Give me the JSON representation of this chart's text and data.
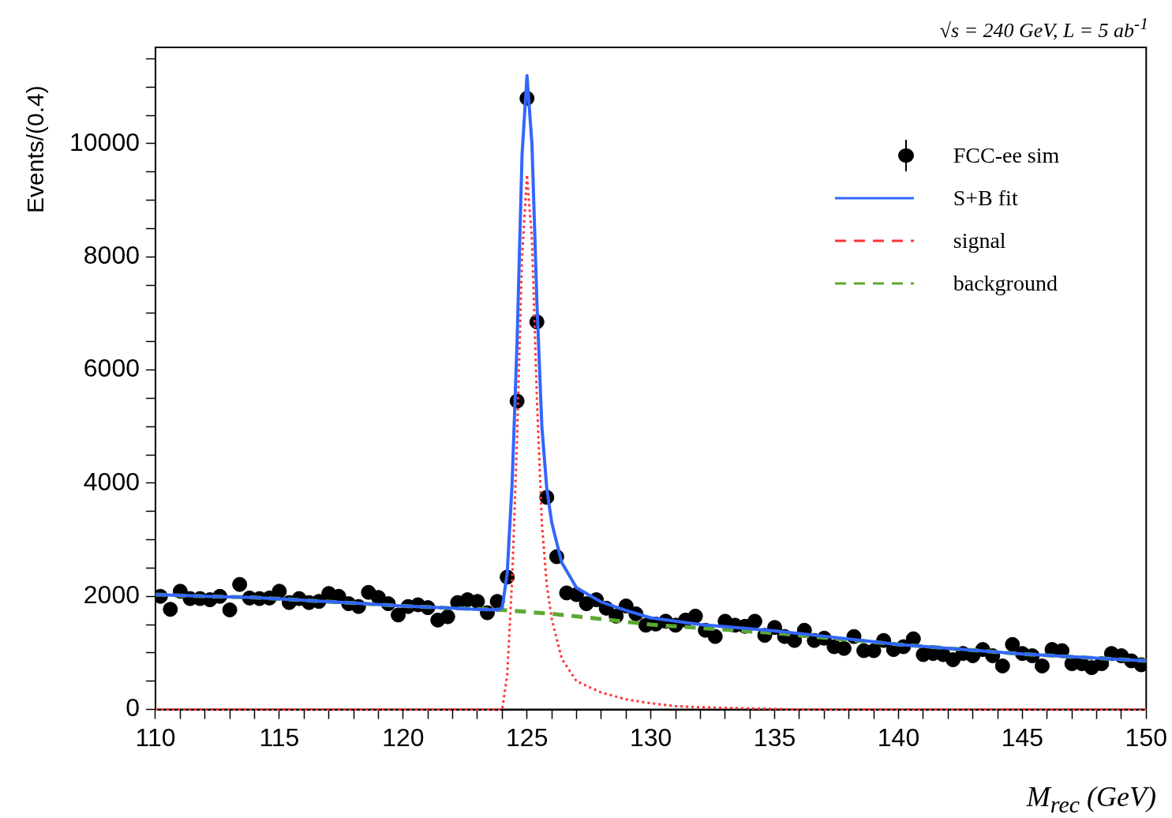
{
  "chart_data": {
    "type": "scatter",
    "title": "√s = 240 GeV, L = 5 ab$^{-1}$",
    "xlabel": "M$_{rec}$ (GeV)",
    "ylabel": "Events/(0.4)",
    "xlim": [
      110,
      150
    ],
    "ylim": [
      0,
      11700
    ],
    "xticks": [
      110,
      {
        "value": 111,
        "label": null
      },
      {
        "value": 112,
        "label": null
      },
      {
        "value": 113,
        "label": null
      },
      {
        "value": 114,
        "label": null
      },
      115,
      {
        "value": 116,
        "label": null
      },
      {
        "value": 117,
        "label": null
      },
      {
        "value": 118,
        "label": null
      },
      {
        "value": 119,
        "label": null
      },
      120,
      {
        "value": 121,
        "label": null
      },
      {
        "value": 122,
        "label": null
      },
      {
        "value": 123,
        "label": null
      },
      {
        "value": 124,
        "label": null
      },
      125,
      {
        "value": 126,
        "label": null
      },
      {
        "value": 127,
        "label": null
      },
      {
        "value": 128,
        "label": null
      },
      {
        "value": 129,
        "label": null
      },
      130,
      {
        "value": 131,
        "label": null
      },
      {
        "value": 132,
        "label": null
      },
      {
        "value": 133,
        "label": null
      },
      {
        "value": 134,
        "label": null
      },
      135,
      {
        "value": 136,
        "label": null
      },
      {
        "value": 137,
        "label": null
      },
      {
        "value": 138,
        "label": null
      },
      {
        "value": 139,
        "label": null
      },
      140,
      {
        "value": 141,
        "label": null
      },
      {
        "value": 142,
        "label": null
      },
      {
        "value": 143,
        "label": null
      },
      {
        "value": 144,
        "label": null
      },
      145,
      {
        "value": 146,
        "label": null
      },
      {
        "value": 147,
        "label": null
      },
      {
        "value": 148,
        "label": null
      },
      {
        "value": 149,
        "label": null
      },
      150
    ],
    "yticks": [
      0,
      {
        "value": 500,
        "label": null
      },
      {
        "value": 1000,
        "label": null
      },
      {
        "value": 1500,
        "label": null
      },
      2000,
      {
        "value": 2500,
        "label": null
      },
      {
        "value": 3000,
        "label": null
      },
      {
        "value": 3500,
        "label": null
      },
      4000,
      {
        "value": 4500,
        "label": null
      },
      {
        "value": 5000,
        "label": null
      },
      {
        "value": 5500,
        "label": null
      },
      6000,
      {
        "value": 6500,
        "label": null
      },
      {
        "value": 7000,
        "label": null
      },
      {
        "value": 7500,
        "label": null
      },
      8000,
      {
        "value": 8500,
        "label": null
      },
      {
        "value": 9000,
        "label": null
      },
      {
        "value": 9500,
        "label": null
      },
      10000,
      {
        "value": 10500,
        "label": null
      },
      {
        "value": 11000,
        "label": null
      },
      {
        "value": 11500,
        "label": null
      }
    ],
    "grid": false,
    "legend": "top right",
    "series": [
      {
        "name": "FCC-ee sim",
        "marker": "circle",
        "color": "#000000",
        "x": [
          110.2,
          110.6,
          111.0,
          111.4,
          111.8,
          112.2,
          112.6,
          113.0,
          113.4,
          113.8,
          114.2,
          114.6,
          115.0,
          115.4,
          115.8,
          116.2,
          116.6,
          117.0,
          117.4,
          117.8,
          118.2,
          118.6,
          119.0,
          119.4,
          119.8,
          120.2,
          120.6,
          121.0,
          121.4,
          121.8,
          122.2,
          122.6,
          123.0,
          123.4,
          123.8,
          124.2,
          124.6,
          125.0,
          125.4,
          125.8,
          126.2,
          126.6,
          127.0,
          127.4,
          127.8,
          128.2,
          128.6,
          129.0,
          129.4,
          129.8,
          130.2,
          130.6,
          131.0,
          131.4,
          131.8,
          132.2,
          132.6,
          133.0,
          133.4,
          133.8,
          134.2,
          134.6,
          135.0,
          135.4,
          135.8,
          136.2,
          136.6,
          137.0,
          137.4,
          137.8,
          138.2,
          138.6,
          139.0,
          139.4,
          139.8,
          140.2,
          140.6,
          141.0,
          141.4,
          141.8,
          142.2,
          142.6,
          143.0,
          143.4,
          143.8,
          144.2,
          144.6,
          145.0,
          145.4,
          145.8,
          146.2,
          146.6,
          147.0,
          147.4,
          147.8,
          148.2,
          148.6,
          149.0,
          149.4,
          149.8
        ],
        "values": [
          2000,
          1770,
          2090,
          1960,
          1960,
          1940,
          2000,
          1760,
          2210,
          1970,
          1960,
          1970,
          2090,
          1890,
          1960,
          1890,
          1910,
          2050,
          2000,
          1870,
          1820,
          2070,
          1980,
          1870,
          1670,
          1820,
          1850,
          1800,
          1580,
          1640,
          1890,
          1940,
          1910,
          1710,
          1910,
          2340,
          5450,
          10800,
          6850,
          3750,
          2700,
          2060,
          2030,
          1870,
          1940,
          1790,
          1650,
          1830,
          1690,
          1490,
          1510,
          1560,
          1490,
          1580,
          1650,
          1400,
          1290,
          1560,
          1490,
          1470,
          1560,
          1310,
          1450,
          1290,
          1220,
          1400,
          1220,
          1260,
          1110,
          1080,
          1290,
          1040,
          1040,
          1220,
          1060,
          1110,
          1250,
          970,
          990,
          970,
          880,
          990,
          950,
          1060,
          950,
          770,
          1150,
          990,
          950,
          770,
          1060,
          1040,
          810,
          810,
          740,
          810,
          990,
          950,
          860,
          790
        ]
      },
      {
        "name": "S+B fit",
        "type": "line",
        "marker": "none",
        "color": "#3366ff",
        "line_style": "solid",
        "x": [
          110,
          112,
          114,
          116,
          118,
          120,
          122,
          123,
          123.8,
          124.0,
          124.2,
          124.4,
          124.6,
          124.8,
          125.0,
          125.2,
          125.4,
          125.6,
          125.8,
          126.0,
          126.4,
          127,
          128,
          129,
          130,
          132,
          135,
          140,
          145,
          150
        ],
        "values": [
          2030,
          2000,
          1980,
          1930,
          1880,
          1830,
          1790,
          1770,
          1760,
          1800,
          2400,
          4000,
          6500,
          9800,
          11200,
          10000,
          7200,
          5000,
          3900,
          3300,
          2600,
          2150,
          1900,
          1750,
          1620,
          1500,
          1390,
          1150,
          980,
          860
        ]
      },
      {
        "name": "signal",
        "type": "line",
        "marker": "none",
        "color": "#ff3333",
        "line_style": "dotted",
        "x": [
          110,
          124.0,
          124.2,
          124.4,
          124.6,
          124.8,
          125.0,
          125.2,
          125.4,
          125.6,
          125.8,
          126.0,
          126.4,
          127,
          128,
          129,
          130,
          131,
          132,
          134,
          136,
          140,
          150
        ],
        "values": [
          0,
          0,
          600,
          2300,
          4800,
          8000,
          9450,
          8300,
          5500,
          3300,
          2200,
          1600,
          900,
          500,
          300,
          180,
          110,
          60,
          40,
          20,
          0,
          0,
          0
        ]
      },
      {
        "name": "background",
        "type": "line",
        "marker": "none",
        "color": "#5ca832",
        "line_style": "dashed",
        "x": [
          110,
          112,
          114,
          116,
          118,
          120,
          122,
          124,
          126,
          128,
          130,
          132,
          135,
          140,
          145,
          150
        ],
        "values": [
          2030,
          2000,
          1980,
          1930,
          1880,
          1830,
          1790,
          1760,
          1690,
          1600,
          1500,
          1440,
          1350,
          1150,
          980,
          860
        ]
      }
    ]
  }
}
